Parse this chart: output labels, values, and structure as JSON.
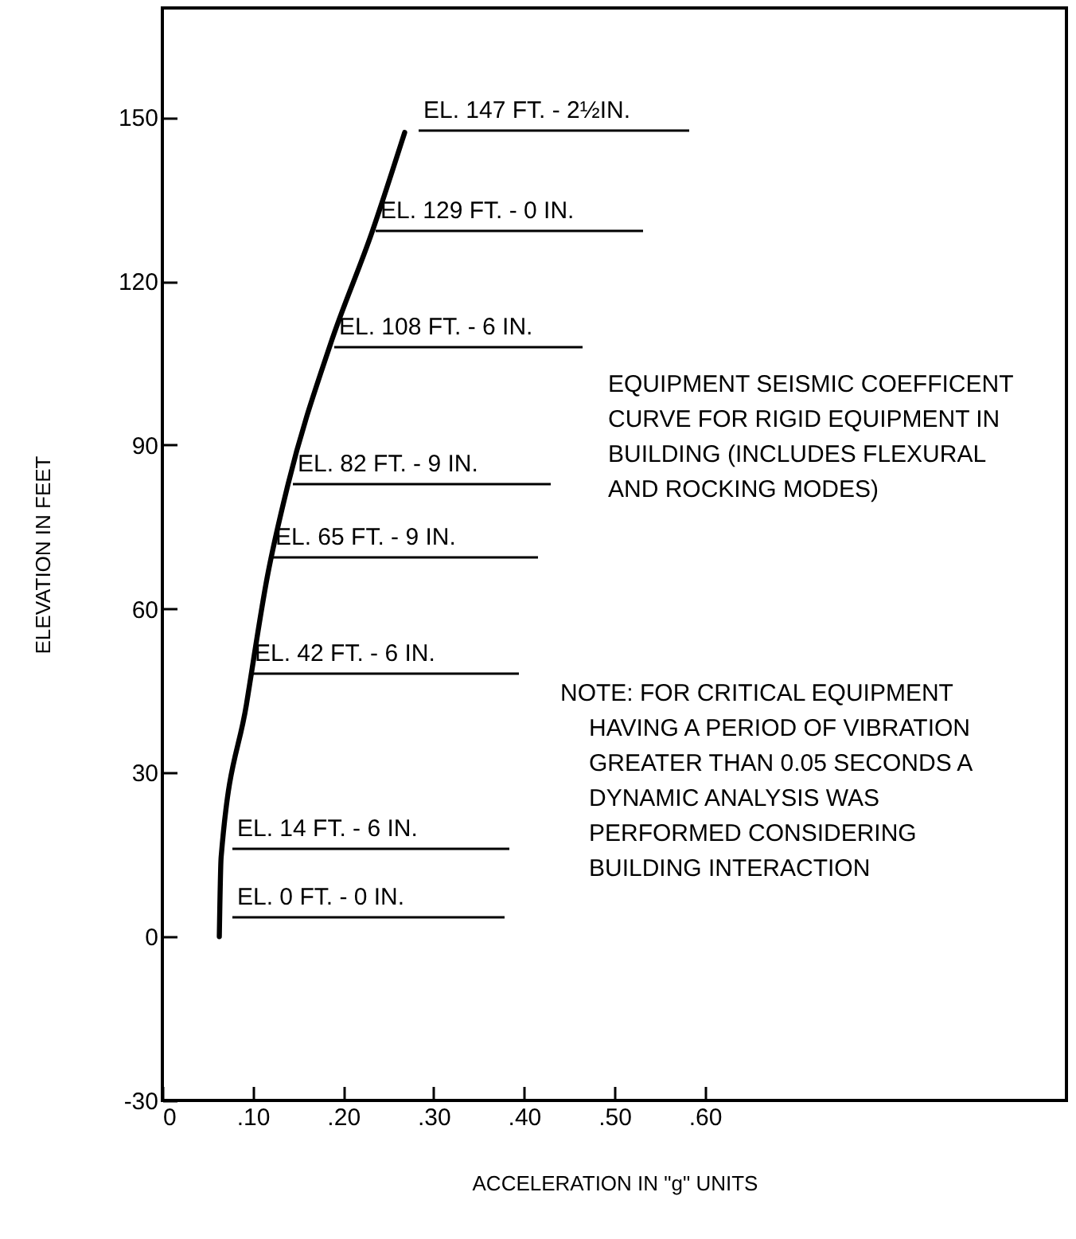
{
  "chart_data": {
    "type": "line",
    "xlabel": "ACCELERATION IN \"g\" UNITS",
    "ylabel": "ELEVATION IN FEET",
    "xlim": [
      0,
      1.0
    ],
    "ylim": [
      -30,
      170
    ],
    "xticks": [
      0,
      {
        "value": 0.1,
        "label": ".10"
      },
      {
        "value": 0.2,
        "label": ".20"
      },
      {
        "value": 0.3,
        "label": ".30"
      },
      {
        "value": 0.4,
        "label": ".40"
      },
      {
        "value": 0.5,
        "label": ".50"
      },
      {
        "value": 0.6,
        "label": ".60"
      }
    ],
    "yticks": [
      -30,
      0,
      30,
      60,
      90,
      120,
      150
    ],
    "grid": false,
    "marker": "none",
    "line_style": "solid",
    "series": [
      {
        "color": "#000000",
        "x": [
          0.063,
          0.065,
          0.093,
          0.116,
          0.139,
          0.186,
          0.232,
          0.268
        ],
        "values": [
          0,
          14.5,
          42.5,
          65.8,
          82.8,
          108.5,
          129,
          147.2
        ]
      }
    ],
    "annotations": [
      "EL. 147 FT. - 2½IN.",
      "EL. 129 FT. - 0 IN.",
      "EL. 108 FT. - 6 IN.",
      "EL. 82 FT. - 9 IN.",
      "EL. 65 FT. - 9 IN.",
      "EL. 42 FT. - 6 IN.",
      "EL. 14 FT. - 6 IN.",
      "EL. 0 FT. - 0 IN.",
      "EQUIPMENT SEISMIC COEFFICENT\nCURVE FOR RIGID EQUIPMENT IN\nBUILDING (INCLUDES FLEXURAL\nAND ROCKING MODES)",
      "NOTE: FOR CRITICAL EQUIPMENT\nHAVING A PERIOD OF VIBRATION\nGREATER THAN 0.05 SECONDS A\nDYNAMIC ANALYSIS WAS\nPERFORMED CONSIDERING\nBUILDING INTERACTION"
    ]
  }
}
